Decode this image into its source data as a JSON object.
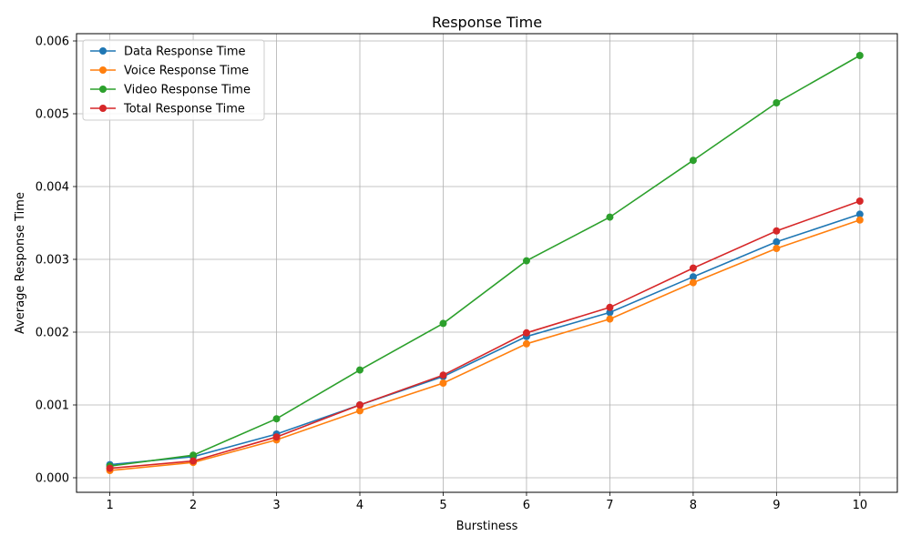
{
  "chart_data": {
    "type": "line",
    "title": "Response Time",
    "xlabel": "Burstiness",
    "ylabel": "Average Response Time",
    "x": [
      1,
      2,
      3,
      4,
      5,
      6,
      7,
      8,
      9,
      10
    ],
    "xlim": [
      0.6,
      10.45
    ],
    "ylim": [
      -0.0002,
      0.0061
    ],
    "y_ticks": [
      0.0,
      0.001,
      0.002,
      0.003,
      0.004,
      0.005,
      0.006
    ],
    "y_tick_labels": [
      "0.000",
      "0.001",
      "0.002",
      "0.003",
      "0.004",
      "0.005",
      "0.006"
    ],
    "grid": true,
    "legend_position": "top-left",
    "series": [
      {
        "name": "Data Response Time",
        "color": "#1f77b4",
        "values": [
          0.00018,
          0.00029,
          0.0006,
          0.001,
          0.00139,
          0.00194,
          0.00227,
          0.00276,
          0.00324,
          0.00362
        ]
      },
      {
        "name": "Voice Response Time",
        "color": "#ff7f0e",
        "values": [
          0.0001,
          0.00021,
          0.00052,
          0.00092,
          0.0013,
          0.00184,
          0.00218,
          0.00268,
          0.00315,
          0.00354
        ]
      },
      {
        "name": "Video Response Time",
        "color": "#2ca02c",
        "values": [
          0.00016,
          0.00031,
          0.00081,
          0.00148,
          0.00212,
          0.00298,
          0.00358,
          0.00436,
          0.00515,
          0.0058
        ]
      },
      {
        "name": "Total Response Time",
        "color": "#d62728",
        "values": [
          0.00013,
          0.00023,
          0.00056,
          0.001,
          0.00141,
          0.00199,
          0.00234,
          0.00288,
          0.00339,
          0.0038
        ]
      }
    ]
  }
}
